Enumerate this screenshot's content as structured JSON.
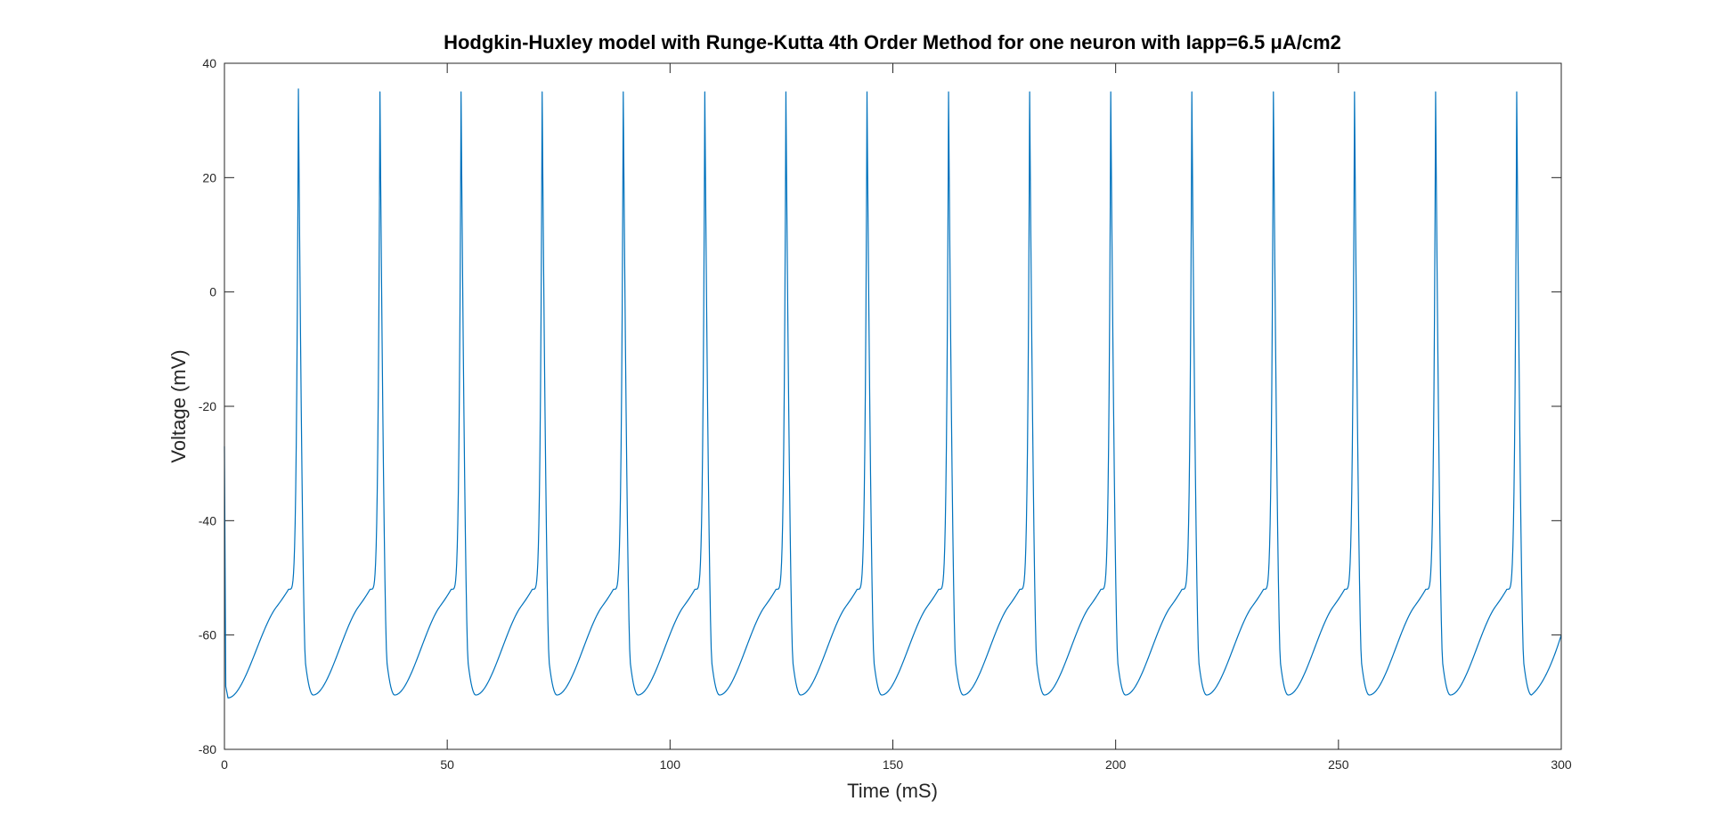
{
  "chart_data": {
    "type": "line",
    "title": "Hodgkin-Huxley model with Runge-Kutta 4th Order Method for one neuron with Iapp=6.5 μA/cm2",
    "xlabel": "Time (mS)",
    "ylabel": "Voltage (mV)",
    "xlim": [
      0,
      300
    ],
    "ylim": [
      -80,
      40
    ],
    "xticks": [
      0,
      50,
      100,
      150,
      200,
      250,
      300
    ],
    "yticks": [
      -80,
      -60,
      -40,
      -20,
      0,
      20,
      40
    ],
    "grid": false,
    "box": true,
    "line_color": "#0072BD",
    "series": [
      {
        "spike_times": [
          16.6,
          34.9,
          53.1,
          71.3,
          89.5,
          107.8,
          126.0,
          144.2,
          162.5,
          180.7,
          198.9,
          217.1,
          235.4,
          253.6,
          271.8,
          290.0
        ],
        "spike_peaks": [
          35.5,
          35.0,
          35.0,
          35.0,
          35.0,
          35.0,
          35.0,
          35.0,
          35.0,
          35.0,
          35.0,
          35.0,
          35.0,
          35.0,
          35.0,
          35.0
        ],
        "initial_voltage": -27,
        "first_trough": -71,
        "trough": -70.5,
        "pre_spike_voltage": -52,
        "end_voltage": -60
      }
    ]
  }
}
